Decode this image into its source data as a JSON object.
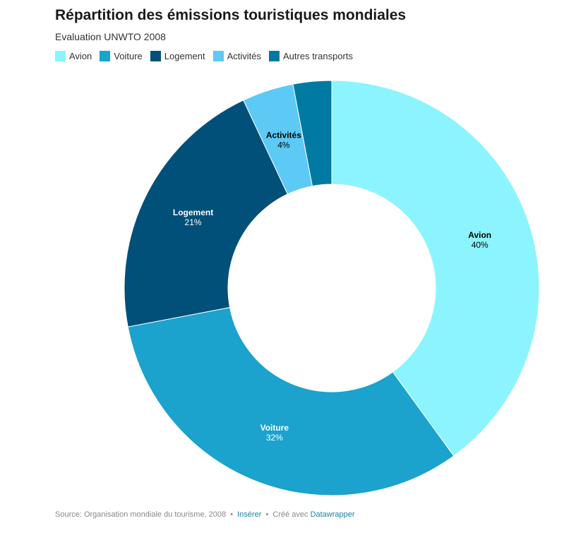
{
  "header": {
    "title": "Répartition des émissions touristiques mondiales",
    "subtitle": "Evaluation UNWTO 2008"
  },
  "chart_data": {
    "type": "pie",
    "style": "donut",
    "title": "Répartition des émissions touristiques mondiales",
    "subtitle": "Evaluation UNWTO 2008",
    "legend_position": "top-left",
    "categories": [
      "Avion",
      "Voiture",
      "Logement",
      "Activités",
      "Autres transports"
    ],
    "values": [
      40,
      32,
      21,
      4,
      3
    ],
    "labels": [
      "40%",
      "32%",
      "21%",
      "4%",
      ""
    ],
    "colors": [
      "#8bf4ff",
      "#1ba2cd",
      "#00507a",
      "#5ccaf5",
      "#007aa3"
    ],
    "label_colors": [
      "#000000",
      "#ffffff",
      "#ffffff",
      "#000000",
      "#ffffff"
    ]
  },
  "footer": {
    "source": "Source: Organisation mondiale du tourisme, 2008",
    "sep1": "•",
    "embed_link": "Insérer",
    "sep2": "•",
    "created_with": "Créé avec",
    "tool_link": "Datawrapper"
  }
}
